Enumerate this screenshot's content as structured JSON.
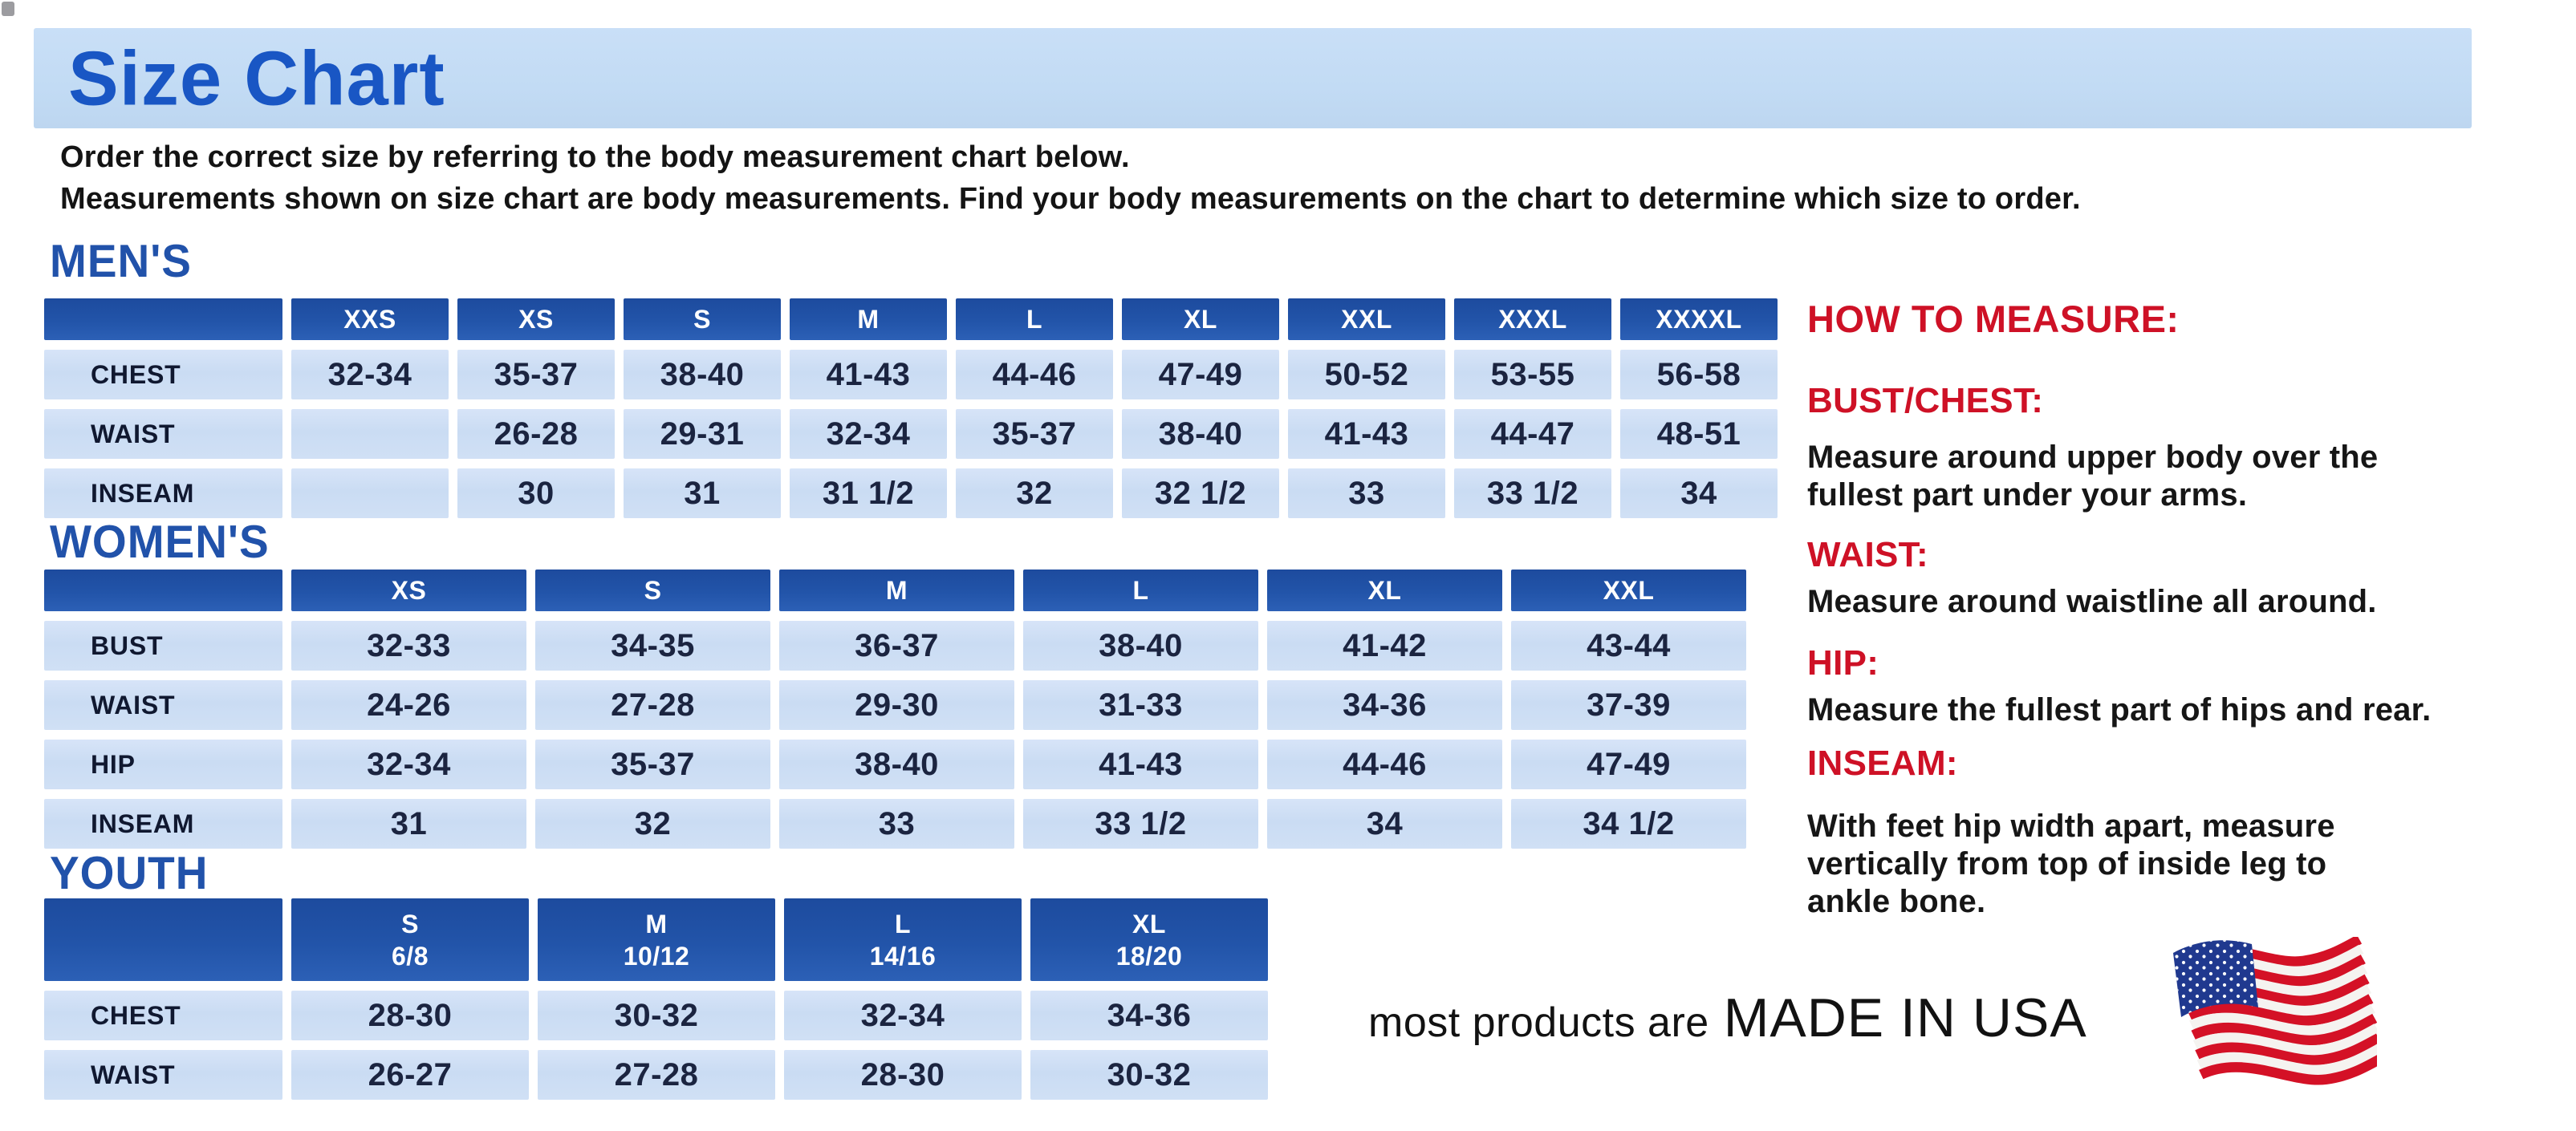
{
  "title": "Size Chart",
  "intro": "Order the correct size by referring to the body measurement chart below.\nMeasurements shown on size chart are body measurements.  Find your body measurements on the chart to determine which size to order.",
  "tables": {
    "mens": {
      "heading": "MEN'S",
      "columns": [
        "XXS",
        "XS",
        "S",
        "M",
        "L",
        "XL",
        "XXL",
        "XXXL",
        "XXXXL"
      ],
      "rows": [
        {
          "label": "CHEST",
          "values": [
            "32-34",
            "35-37",
            "38-40",
            "41-43",
            "44-46",
            "47-49",
            "50-52",
            "53-55",
            "56-58"
          ]
        },
        {
          "label": "WAIST",
          "values": [
            "",
            "26-28",
            "29-31",
            "32-34",
            "35-37",
            "38-40",
            "41-43",
            "44-47",
            "48-51"
          ]
        },
        {
          "label": "INSEAM",
          "values": [
            "",
            "30",
            "31",
            "31 1/2",
            "32",
            "32 1/2",
            "33",
            "33 1/2",
            "34"
          ]
        }
      ]
    },
    "womens": {
      "heading": "WOMEN'S",
      "columns": [
        "XS",
        "S",
        "M",
        "L",
        "XL",
        "XXL"
      ],
      "rows": [
        {
          "label": "BUST",
          "values": [
            "32-33",
            "34-35",
            "36-37",
            "38-40",
            "41-42",
            "43-44"
          ]
        },
        {
          "label": "WAIST",
          "values": [
            "24-26",
            "27-28",
            "29-30",
            "31-33",
            "34-36",
            "37-39"
          ]
        },
        {
          "label": "HIP",
          "values": [
            "32-34",
            "35-37",
            "38-40",
            "41-43",
            "44-46",
            "47-49"
          ]
        },
        {
          "label": "INSEAM",
          "values": [
            "31",
            "32",
            "33",
            "33 1/2",
            "34",
            "34 1/2"
          ]
        }
      ]
    },
    "youth": {
      "heading": "YOUTH",
      "columns": [
        "S\n6/8",
        "M\n10/12",
        "L\n14/16",
        "XL\n18/20"
      ],
      "rows": [
        {
          "label": "CHEST",
          "values": [
            "28-30",
            "30-32",
            "32-34",
            "34-36"
          ]
        },
        {
          "label": "WAIST",
          "values": [
            "26-27",
            "27-28",
            "28-30",
            "30-32"
          ]
        }
      ]
    }
  },
  "measure": {
    "heading": "HOW TO MEASURE:",
    "items": [
      {
        "label": "BUST/CHEST:",
        "text": "Measure around upper body over the\nfullest part under your arms."
      },
      {
        "label": "WAIST:",
        "text": "Measure around waistline all around."
      },
      {
        "label": "HIP:",
        "text": "Measure the fullest part of hips and rear."
      },
      {
        "label": "INSEAM:",
        "text": "With feet hip width apart, measure\nvertically from top of inside leg to\nankle bone."
      }
    ]
  },
  "footer": {
    "prefix": "most products are",
    "emphasis": "MADE IN USA",
    "flag_icon": "us-flag-icon"
  },
  "colors": {
    "title_blue": "#1956c4",
    "section_blue": "#2152aa",
    "table_header_blue": "#2254a9",
    "cell_blue": "#cddcf3",
    "banner_blue": "#c2dbf4",
    "heading_red": "#ce1126"
  }
}
